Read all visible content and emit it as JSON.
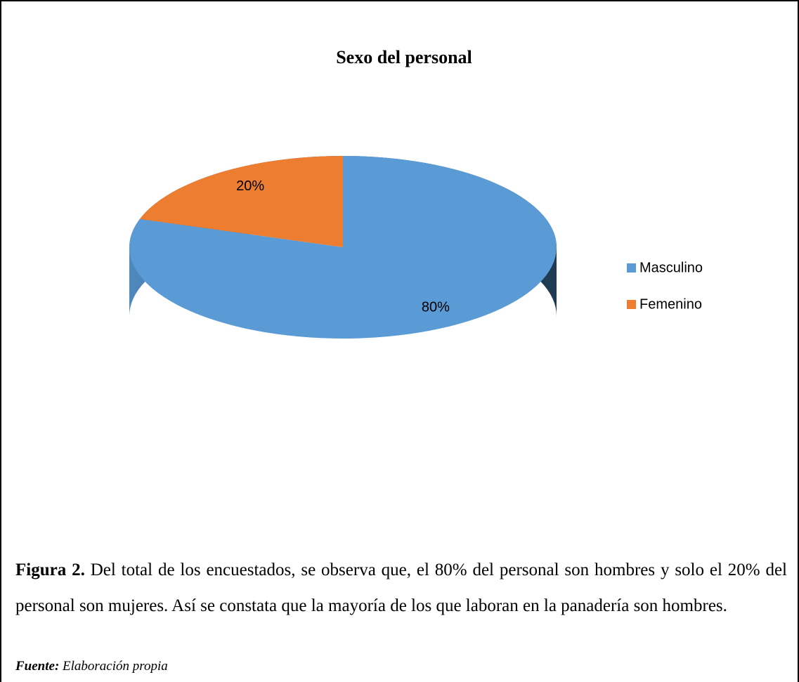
{
  "chart_data": {
    "type": "pie",
    "title": "Sexo del personal",
    "categories": [
      "Masculino",
      "Femenino"
    ],
    "values": [
      80,
      20
    ],
    "value_labels": [
      "80%",
      "20%"
    ],
    "colors": [
      "#5b9bd5",
      "#ed7d31"
    ],
    "legend": "right"
  },
  "caption": {
    "label": "Figura 2.",
    "text": " Del total de los encuestados, se observa que, el 80% del personal son hombres y solo el 20% del personal son mujeres. Así se constata que la mayoría de los que laboran en la panadería son hombres."
  },
  "source": {
    "label": "Fuente:",
    "text": " Elaboración propia"
  }
}
